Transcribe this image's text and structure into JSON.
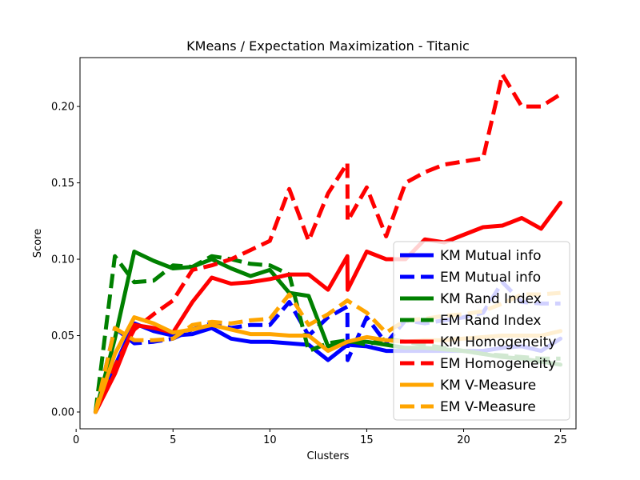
{
  "chart_data": {
    "type": "line",
    "title": "KMeans / Expectation Maximization - Titanic",
    "xlabel": "Clusters",
    "ylabel": "Score",
    "xlim": [
      0.2,
      25.8
    ],
    "ylim": [
      -0.011,
      0.232
    ],
    "xticks": [
      0,
      5,
      10,
      15,
      20,
      25
    ],
    "yticks": [
      0.0,
      0.05,
      0.1,
      0.15,
      0.2
    ],
    "xtick_labels": [
      "0",
      "5",
      "10",
      "15",
      "20",
      "25"
    ],
    "ytick_labels": [
      "0.00",
      "0.05",
      "0.10",
      "0.15",
      "0.20"
    ],
    "grid": false,
    "legend_position": "lower-right",
    "series": [
      {
        "name": "KM Mutual info",
        "color": "#0000ff",
        "dash": "solid",
        "x": [
          1,
          2,
          3,
          4,
          5,
          6,
          7,
          8,
          9,
          10,
          11,
          12,
          13,
          14,
          15,
          16,
          17,
          18,
          19,
          20,
          21,
          22,
          23,
          24,
          25
        ],
        "y": [
          0.0,
          0.03,
          0.058,
          0.053,
          0.05,
          0.051,
          0.055,
          0.048,
          0.046,
          0.046,
          0.045,
          0.044,
          0.034,
          0.044,
          0.043,
          0.04,
          0.04,
          0.04,
          0.04,
          0.04,
          0.04,
          0.042,
          0.043,
          0.04,
          0.048
        ]
      },
      {
        "name": "EM Mutual info",
        "color": "#0000ff",
        "dash": "dashed",
        "x": [
          1,
          2,
          3,
          4,
          5,
          6,
          7,
          8,
          9,
          10,
          11,
          12,
          13,
          14,
          14.01,
          15,
          16,
          17,
          18,
          19,
          20,
          21,
          22,
          23,
          24,
          25
        ],
        "y": [
          0.0,
          0.055,
          0.045,
          0.046,
          0.048,
          0.054,
          0.058,
          0.055,
          0.057,
          0.057,
          0.072,
          0.05,
          0.062,
          0.069,
          0.034,
          0.062,
          0.045,
          0.06,
          0.058,
          0.06,
          0.062,
          0.065,
          0.085,
          0.072,
          0.071,
          0.071
        ]
      },
      {
        "name": "KM Rand Index",
        "color": "#008000",
        "dash": "solid",
        "x": [
          1,
          2,
          3,
          4,
          5,
          6,
          7,
          8,
          9,
          10,
          11,
          12,
          13,
          14,
          15,
          16,
          17,
          18,
          19,
          20,
          21,
          22,
          23,
          24,
          25
        ],
        "y": [
          0.0,
          0.048,
          0.105,
          0.099,
          0.094,
          0.095,
          0.1,
          0.094,
          0.089,
          0.093,
          0.078,
          0.076,
          0.043,
          0.046,
          0.046,
          0.044,
          0.042,
          0.042,
          0.041,
          0.04,
          0.038,
          0.036,
          0.035,
          0.033,
          0.031
        ]
      },
      {
        "name": "EM Rand Index",
        "color": "#008000",
        "dash": "dashed",
        "x": [
          1,
          2,
          3,
          4,
          5,
          6,
          7,
          8,
          9,
          10,
          11,
          12,
          13,
          14,
          15,
          16,
          17,
          18,
          19,
          20,
          21,
          22,
          23,
          24,
          25
        ],
        "y": [
          0.0,
          0.102,
          0.085,
          0.086,
          0.096,
          0.095,
          0.102,
          0.1,
          0.097,
          0.096,
          0.09,
          0.04,
          0.045,
          0.047,
          0.044,
          0.048,
          0.046,
          0.044,
          0.042,
          0.04,
          0.038,
          0.037,
          0.036,
          0.035,
          0.035
        ]
      },
      {
        "name": "KM Homogeneity",
        "color": "#ff0000",
        "dash": "solid",
        "x": [
          1,
          2,
          3,
          4,
          5,
          6,
          7,
          8,
          9,
          10,
          11,
          12,
          13,
          14,
          14.01,
          15,
          16,
          17,
          18,
          19,
          20,
          21,
          22,
          23,
          24,
          25
        ],
        "y": [
          0.0,
          0.025,
          0.057,
          0.055,
          0.052,
          0.072,
          0.088,
          0.084,
          0.085,
          0.087,
          0.09,
          0.09,
          0.08,
          0.102,
          0.08,
          0.105,
          0.1,
          0.1,
          0.113,
          0.111,
          0.116,
          0.121,
          0.122,
          0.127,
          0.12,
          0.137
        ]
      },
      {
        "name": "EM Homogeneity",
        "color": "#ff0000",
        "dash": "dashed",
        "x": [
          1,
          2,
          3,
          4,
          5,
          6,
          7,
          8,
          9,
          10,
          11,
          12,
          13,
          14,
          14.01,
          15,
          16,
          17,
          18,
          19,
          20,
          21,
          22,
          23,
          24,
          25
        ],
        "y": [
          0.0,
          0.03,
          0.054,
          0.064,
          0.073,
          0.093,
          0.096,
          0.1,
          0.106,
          0.112,
          0.146,
          0.112,
          0.143,
          0.163,
          0.125,
          0.147,
          0.115,
          0.15,
          0.157,
          0.162,
          0.164,
          0.166,
          0.221,
          0.2,
          0.2,
          0.208
        ]
      },
      {
        "name": "KM V-Measure",
        "color": "#ffa500",
        "dash": "solid",
        "x": [
          1,
          2,
          3,
          4,
          5,
          6,
          7,
          8,
          9,
          10,
          11,
          12,
          13,
          14,
          15,
          16,
          17,
          18,
          19,
          20,
          21,
          22,
          23,
          24,
          25
        ],
        "y": [
          0.0,
          0.038,
          0.062,
          0.058,
          0.052,
          0.054,
          0.057,
          0.054,
          0.051,
          0.051,
          0.05,
          0.05,
          0.04,
          0.046,
          0.049,
          0.047,
          0.046,
          0.047,
          0.047,
          0.048,
          0.049,
          0.05,
          0.05,
          0.05,
          0.053
        ]
      },
      {
        "name": "EM V-Measure",
        "color": "#ffa500",
        "dash": "dashed",
        "x": [
          1,
          2,
          3,
          4,
          5,
          6,
          7,
          8,
          9,
          10,
          11,
          12,
          13,
          14,
          15,
          16,
          17,
          18,
          19,
          20,
          21,
          22,
          23,
          24,
          25
        ],
        "y": [
          0.0,
          0.055,
          0.047,
          0.047,
          0.048,
          0.057,
          0.059,
          0.058,
          0.06,
          0.061,
          0.077,
          0.057,
          0.064,
          0.073,
          0.065,
          0.052,
          0.06,
          0.061,
          0.063,
          0.064,
          0.066,
          0.071,
          0.077,
          0.077,
          0.078
        ]
      }
    ]
  }
}
